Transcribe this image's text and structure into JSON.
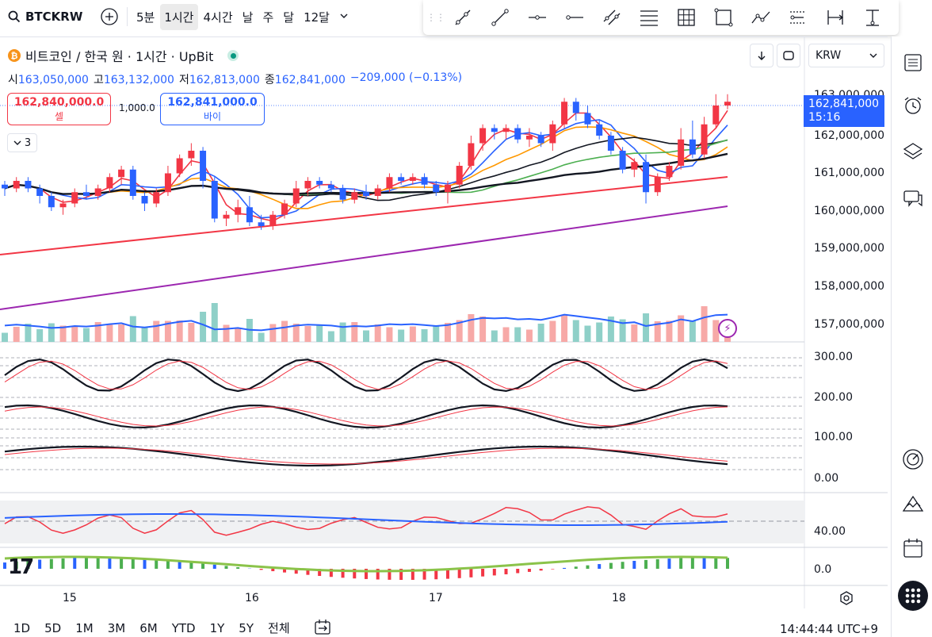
{
  "toolbar": {
    "symbol": "BTCKRW",
    "intervals": [
      "5분",
      "1시간",
      "4시간",
      "날",
      "주",
      "달",
      "12달"
    ],
    "active_interval": "1시간"
  },
  "legend": {
    "title": "비트코인 / 한국 원 · 1시간 · UpBit",
    "open_label": "시",
    "open": "163,050,000",
    "high_label": "고",
    "high": "163,132,000",
    "low_label": "저",
    "low": "162,813,000",
    "close_label": "종",
    "close": "162,841,000",
    "change": "−209,000 (−0.13%)"
  },
  "trade": {
    "sell_price": "162,840,000.0",
    "sell_label": "셀",
    "qty": "1,000.0",
    "buy_price": "162,841,000.0",
    "buy_label": "바이",
    "collapse_count": "3"
  },
  "currency": "KRW",
  "price_label": {
    "price": "162,841,000",
    "countdown": "15:16"
  },
  "y_axis": [
    "163,000,000",
    "162,000,000",
    "161,000,000",
    "160,000,000",
    "159,000,000",
    "158,000,000",
    "157,000,000",
    "300.00",
    "200.00",
    "100.00",
    "0.00",
    "40.00",
    "0.0"
  ],
  "x_axis": [
    "15",
    "16",
    "17",
    "18"
  ],
  "ranges": [
    "1D",
    "5D",
    "1M",
    "3M",
    "6M",
    "YTD",
    "1Y",
    "5Y",
    "전체"
  ],
  "clock": "14:44:44 UTC+9",
  "colors": {
    "up": "#f23645",
    "down": "#2962ff",
    "accent": "#2962ff",
    "vol_up": "#f7a9a7",
    "vol_down": "#8fd0c8"
  },
  "chart_data": {
    "type": "candlestick",
    "x": [
      "15",
      "16",
      "17",
      "18"
    ],
    "ylim": [
      156500000,
      163300000
    ],
    "candles": [
      [
        160.7,
        160.8,
        160.4,
        160.6
      ],
      [
        160.6,
        160.9,
        160.5,
        160.8
      ],
      [
        160.8,
        160.9,
        160.5,
        160.6
      ],
      [
        160.6,
        160.7,
        160.2,
        160.4
      ],
      [
        160.4,
        160.5,
        160.0,
        160.1
      ],
      [
        160.1,
        160.3,
        159.9,
        160.2
      ],
      [
        160.2,
        160.6,
        160.1,
        160.5
      ],
      [
        160.5,
        160.7,
        160.3,
        160.4
      ],
      [
        160.4,
        160.7,
        160.3,
        160.6
      ],
      [
        160.6,
        161.0,
        160.5,
        160.9
      ],
      [
        160.9,
        161.2,
        160.7,
        161.1
      ],
      [
        161.1,
        161.2,
        160.3,
        160.4
      ],
      [
        160.4,
        160.5,
        160.0,
        160.2
      ],
      [
        160.2,
        160.6,
        160.1,
        160.5
      ],
      [
        160.5,
        161.2,
        160.4,
        161.0
      ],
      [
        161.0,
        161.5,
        160.9,
        161.4
      ],
      [
        161.4,
        161.8,
        161.2,
        161.6
      ],
      [
        161.6,
        161.7,
        160.6,
        160.8
      ],
      [
        160.8,
        160.9,
        159.7,
        159.8
      ],
      [
        159.8,
        160.0,
        159.6,
        159.9
      ],
      [
        159.9,
        160.3,
        159.7,
        160.1
      ],
      [
        160.1,
        160.4,
        159.6,
        159.7
      ],
      [
        159.7,
        159.9,
        159.5,
        159.6
      ],
      [
        159.6,
        160.0,
        159.5,
        159.9
      ],
      [
        159.9,
        160.3,
        159.8,
        160.2
      ],
      [
        160.2,
        160.8,
        160.1,
        160.6
      ],
      [
        160.6,
        160.9,
        160.4,
        160.8
      ],
      [
        160.8,
        160.9,
        160.6,
        160.7
      ],
      [
        160.7,
        160.8,
        160.5,
        160.6
      ],
      [
        160.6,
        160.7,
        160.2,
        160.3
      ],
      [
        160.3,
        160.6,
        160.2,
        160.5
      ],
      [
        160.5,
        160.7,
        160.3,
        160.4
      ],
      [
        160.4,
        160.7,
        160.3,
        160.6
      ],
      [
        160.6,
        161.0,
        160.5,
        160.9
      ],
      [
        160.9,
        161.0,
        160.7,
        160.8
      ],
      [
        160.8,
        161.0,
        160.7,
        160.9
      ],
      [
        160.9,
        161.0,
        160.6,
        160.7
      ],
      [
        160.7,
        160.8,
        160.4,
        160.5
      ],
      [
        160.5,
        160.8,
        160.2,
        160.7
      ],
      [
        160.7,
        161.3,
        160.6,
        161.2
      ],
      [
        161.2,
        162.0,
        161.1,
        161.8
      ],
      [
        161.8,
        162.3,
        161.6,
        162.2
      ],
      [
        162.2,
        162.3,
        161.9,
        162.1
      ],
      [
        162.1,
        162.3,
        161.9,
        162.2
      ],
      [
        162.2,
        162.3,
        161.8,
        161.9
      ],
      [
        161.9,
        162.2,
        161.7,
        162.0
      ],
      [
        162.0,
        162.1,
        161.7,
        161.8
      ],
      [
        161.8,
        162.4,
        161.6,
        162.3
      ],
      [
        162.3,
        163.0,
        162.2,
        162.9
      ],
      [
        162.9,
        163.0,
        162.4,
        162.6
      ],
      [
        162.6,
        162.8,
        162.2,
        162.3
      ],
      [
        162.3,
        162.4,
        161.9,
        162.0
      ],
      [
        162.0,
        162.1,
        161.5,
        161.6
      ],
      [
        161.6,
        161.7,
        161.0,
        161.1
      ],
      [
        161.1,
        161.4,
        160.9,
        161.3
      ],
      [
        161.3,
        161.5,
        160.2,
        160.5
      ],
      [
        160.5,
        161.0,
        160.4,
        160.9
      ],
      [
        160.9,
        161.3,
        160.8,
        161.2
      ],
      [
        161.2,
        162.2,
        161.1,
        161.9
      ],
      [
        161.9,
        162.4,
        161.4,
        161.5
      ],
      [
        161.5,
        162.5,
        161.4,
        162.3
      ],
      [
        162.3,
        163.1,
        162.2,
        162.8
      ],
      [
        162.8,
        163.1,
        162.7,
        162.9
      ]
    ],
    "note_units": "candle values in millions KRW (open, high, low, close)"
  }
}
